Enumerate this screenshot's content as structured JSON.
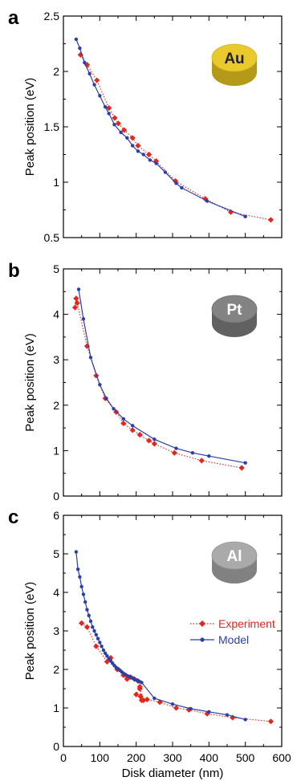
{
  "chart_data": [
    {
      "type": "line",
      "panel": "a",
      "metal": "Au",
      "xlabel": "",
      "ylabel": "Peak position (eV)",
      "xlim": [
        0,
        600
      ],
      "ylim": [
        0.5,
        2.5
      ],
      "yticks": [
        "0.5",
        "1",
        "1.5",
        "2",
        "2.5"
      ],
      "xticks": [],
      "disk_color": "#e8c620",
      "disk_text_color": "#222222",
      "series": [
        {
          "name": "Experiment",
          "color": "#e4261c",
          "style": "dotted",
          "marker": "diamond",
          "x": [
            47,
            65,
            92,
            125,
            141,
            151,
            167,
            190,
            205,
            235,
            255,
            308,
            390,
            460,
            570
          ],
          "y": [
            2.15,
            2.06,
            1.92,
            1.67,
            1.58,
            1.53,
            1.47,
            1.4,
            1.33,
            1.25,
            1.19,
            1.01,
            0.85,
            0.73,
            0.66
          ]
        },
        {
          "name": "Model",
          "color": "#2b3fa5",
          "style": "solid",
          "marker": "dot",
          "x": [
            35,
            45,
            58,
            72,
            85,
            100,
            115,
            125,
            140,
            158,
            175,
            190,
            205,
            220,
            238,
            255,
            280,
            310,
            325,
            395,
            500
          ],
          "y": [
            2.29,
            2.21,
            2.08,
            1.98,
            1.88,
            1.78,
            1.68,
            1.62,
            1.52,
            1.45,
            1.4,
            1.33,
            1.28,
            1.25,
            1.2,
            1.17,
            1.09,
            0.99,
            0.95,
            0.83,
            0.69
          ]
        }
      ]
    },
    {
      "type": "line",
      "panel": "b",
      "metal": "Pt",
      "xlabel": "",
      "ylabel": "Peak position (eV)",
      "xlim": [
        0,
        600
      ],
      "ylim": [
        0,
        5
      ],
      "yticks": [
        "0",
        "1",
        "2",
        "3",
        "4",
        "5"
      ],
      "xticks": [],
      "disk_color": "#7c7c7c",
      "disk_text_color": "#ffffff",
      "series": [
        {
          "name": "Experiment",
          "color": "#e4261c",
          "style": "dotted",
          "marker": "diamond",
          "x": [
            32,
            35,
            38,
            65,
            90,
            115,
            145,
            165,
            190,
            210,
            235,
            250,
            305,
            380,
            490
          ],
          "y": [
            4.15,
            4.35,
            4.25,
            3.3,
            2.65,
            2.15,
            1.85,
            1.6,
            1.45,
            1.35,
            1.22,
            1.15,
            0.95,
            0.78,
            0.62
          ]
        },
        {
          "name": "Model",
          "color": "#2b3fa5",
          "style": "solid",
          "marker": "dot",
          "x": [
            42,
            55,
            75,
            100,
            118,
            138,
            165,
            190,
            250,
            310,
            355,
            400,
            500
          ],
          "y": [
            4.55,
            3.9,
            3.05,
            2.45,
            2.15,
            1.92,
            1.7,
            1.55,
            1.25,
            1.05,
            0.95,
            0.88,
            0.73
          ]
        }
      ]
    },
    {
      "type": "line",
      "panel": "c",
      "metal": "Al",
      "xlabel": "Disk diameter (nm)",
      "ylabel": "Peak position (eV)",
      "xlim": [
        0,
        600
      ],
      "ylim": [
        0,
        6
      ],
      "yticks": [
        "0",
        "1",
        "2",
        "3",
        "4",
        "5",
        "6"
      ],
      "xticks": [
        "0",
        "100",
        "200",
        "300",
        "400",
        "500",
        "600"
      ],
      "legend": "center-right",
      "disk_color": "#a6a6a6",
      "disk_text_color": "#ffffff",
      "series": [
        {
          "name": "Experiment",
          "color": "#e4261c",
          "style": "dotted",
          "marker": "diamond",
          "x": [
            50,
            65,
            90,
            120,
            130,
            148,
            165,
            175,
            185,
            195,
            205,
            210,
            212,
            215,
            200,
            210,
            220,
            230,
            265,
            310,
            345,
            395,
            465,
            570
          ],
          "y": [
            3.2,
            3.1,
            2.6,
            2.2,
            2.3,
            2.0,
            1.85,
            1.75,
            1.8,
            1.75,
            1.7,
            1.5,
            1.3,
            1.2,
            1.35,
            1.55,
            1.2,
            1.22,
            1.15,
            1.0,
            0.95,
            0.85,
            0.75,
            0.65
          ]
        },
        {
          "name": "Model",
          "color": "#2b3fa5",
          "style": "solid",
          "marker": "dot",
          "x": [
            35,
            40,
            45,
            50,
            55,
            60,
            65,
            70,
            75,
            80,
            85,
            90,
            95,
            100,
            105,
            110,
            115,
            120,
            125,
            130,
            135,
            140,
            145,
            150,
            155,
            160,
            165,
            170,
            175,
            180,
            185,
            190,
            195,
            200,
            205,
            210,
            215,
            250,
            300,
            350,
            400,
            450,
            500
          ],
          "y": [
            5.05,
            4.6,
            4.4,
            4.15,
            3.95,
            3.75,
            3.55,
            3.4,
            3.25,
            3.1,
            3.0,
            2.9,
            2.8,
            2.7,
            2.6,
            2.5,
            2.42,
            2.35,
            2.28,
            2.22,
            2.16,
            2.1,
            2.05,
            2.02,
            1.98,
            1.94,
            1.9,
            1.87,
            1.84,
            1.82,
            1.8,
            1.78,
            1.75,
            1.73,
            1.7,
            1.68,
            1.66,
            1.25,
            1.1,
            0.98,
            0.9,
            0.82,
            0.7
          ]
        }
      ]
    }
  ]
}
